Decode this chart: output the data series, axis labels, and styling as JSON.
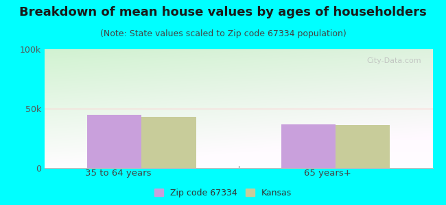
{
  "title": "Breakdown of mean house values by ages of householders",
  "subtitle": "(Note: State values scaled to Zip code 67334 population)",
  "categories": [
    "35 to 64 years",
    "65 years+"
  ],
  "zip_values": [
    45000,
    37000
  ],
  "kansas_values": [
    43000,
    36000
  ],
  "ylim": [
    0,
    100000
  ],
  "ytick_labels": [
    "0",
    "50k",
    "100k"
  ],
  "ytick_values": [
    0,
    50000,
    100000
  ],
  "zip_color": "#c9a0dc",
  "kansas_color": "#c8cc9a",
  "outer_bg": "#00ffff",
  "bar_width": 0.28,
  "legend_zip_label": "Zip code 67334",
  "legend_kansas_label": "Kansas",
  "title_fontsize": 13,
  "subtitle_fontsize": 9,
  "watermark": "City-Data.com"
}
